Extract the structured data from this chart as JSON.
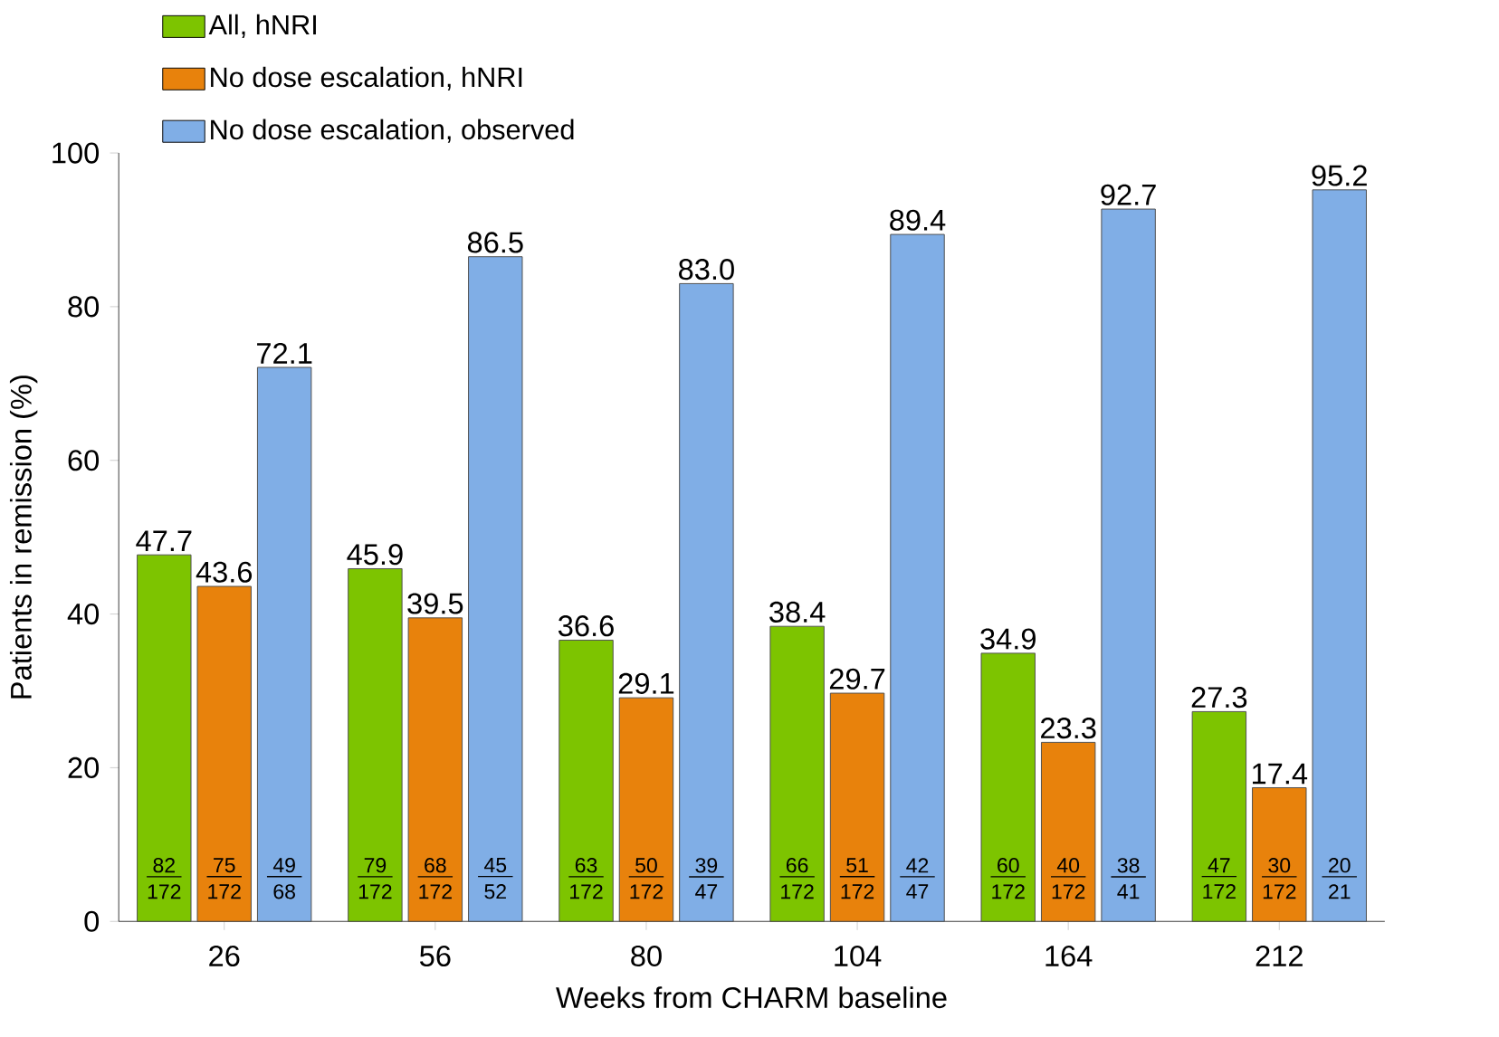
{
  "chart_data": {
    "type": "bar",
    "xlabel": "Weeks from CHARM baseline",
    "ylabel": "Patients in remission (%)",
    "categories": [
      "26",
      "56",
      "80",
      "104",
      "164",
      "212"
    ],
    "series": [
      {
        "name": "All, hNRI",
        "color": "#7dc400",
        "values": [
          47.7,
          45.9,
          36.6,
          38.4,
          34.9,
          27.3
        ],
        "value_labels": [
          "47.7",
          "45.9",
          "36.6",
          "38.4",
          "34.9",
          "27.3"
        ]
      },
      {
        "name": "No dose escalation, hNRI",
        "color": "#e8820c",
        "values": [
          43.6,
          39.5,
          29.1,
          29.7,
          23.3,
          17.4
        ],
        "value_labels": [
          "43.6",
          "39.5",
          "29.1",
          "29.7",
          "23.3",
          "17.4"
        ]
      },
      {
        "name": "No dose escalation, observed",
        "color": "#80aee6",
        "values": [
          72.1,
          86.5,
          83.0,
          89.4,
          92.7,
          95.2
        ],
        "value_labels": [
          "72.1",
          "86.5",
          "83.0",
          "89.4",
          "92.7",
          "95.2"
        ]
      }
    ],
    "ylim": [
      0,
      100
    ],
    "yticks": [
      0,
      20,
      40,
      60,
      80,
      100
    ],
    "legend": "top left",
    "grid": false,
    "annotations": [
      "82",
      "172",
      "75",
      "172",
      "49",
      "68",
      "79",
      "172",
      "68",
      "172",
      "45",
      "52",
      "63",
      "172",
      "50",
      "172",
      "39",
      "47",
      "66",
      "172",
      "51",
      "172",
      "42",
      "47",
      "60",
      "172",
      "40",
      "172",
      "38",
      "41",
      "47",
      "172",
      "30",
      "172",
      "20",
      "21"
    ]
  }
}
